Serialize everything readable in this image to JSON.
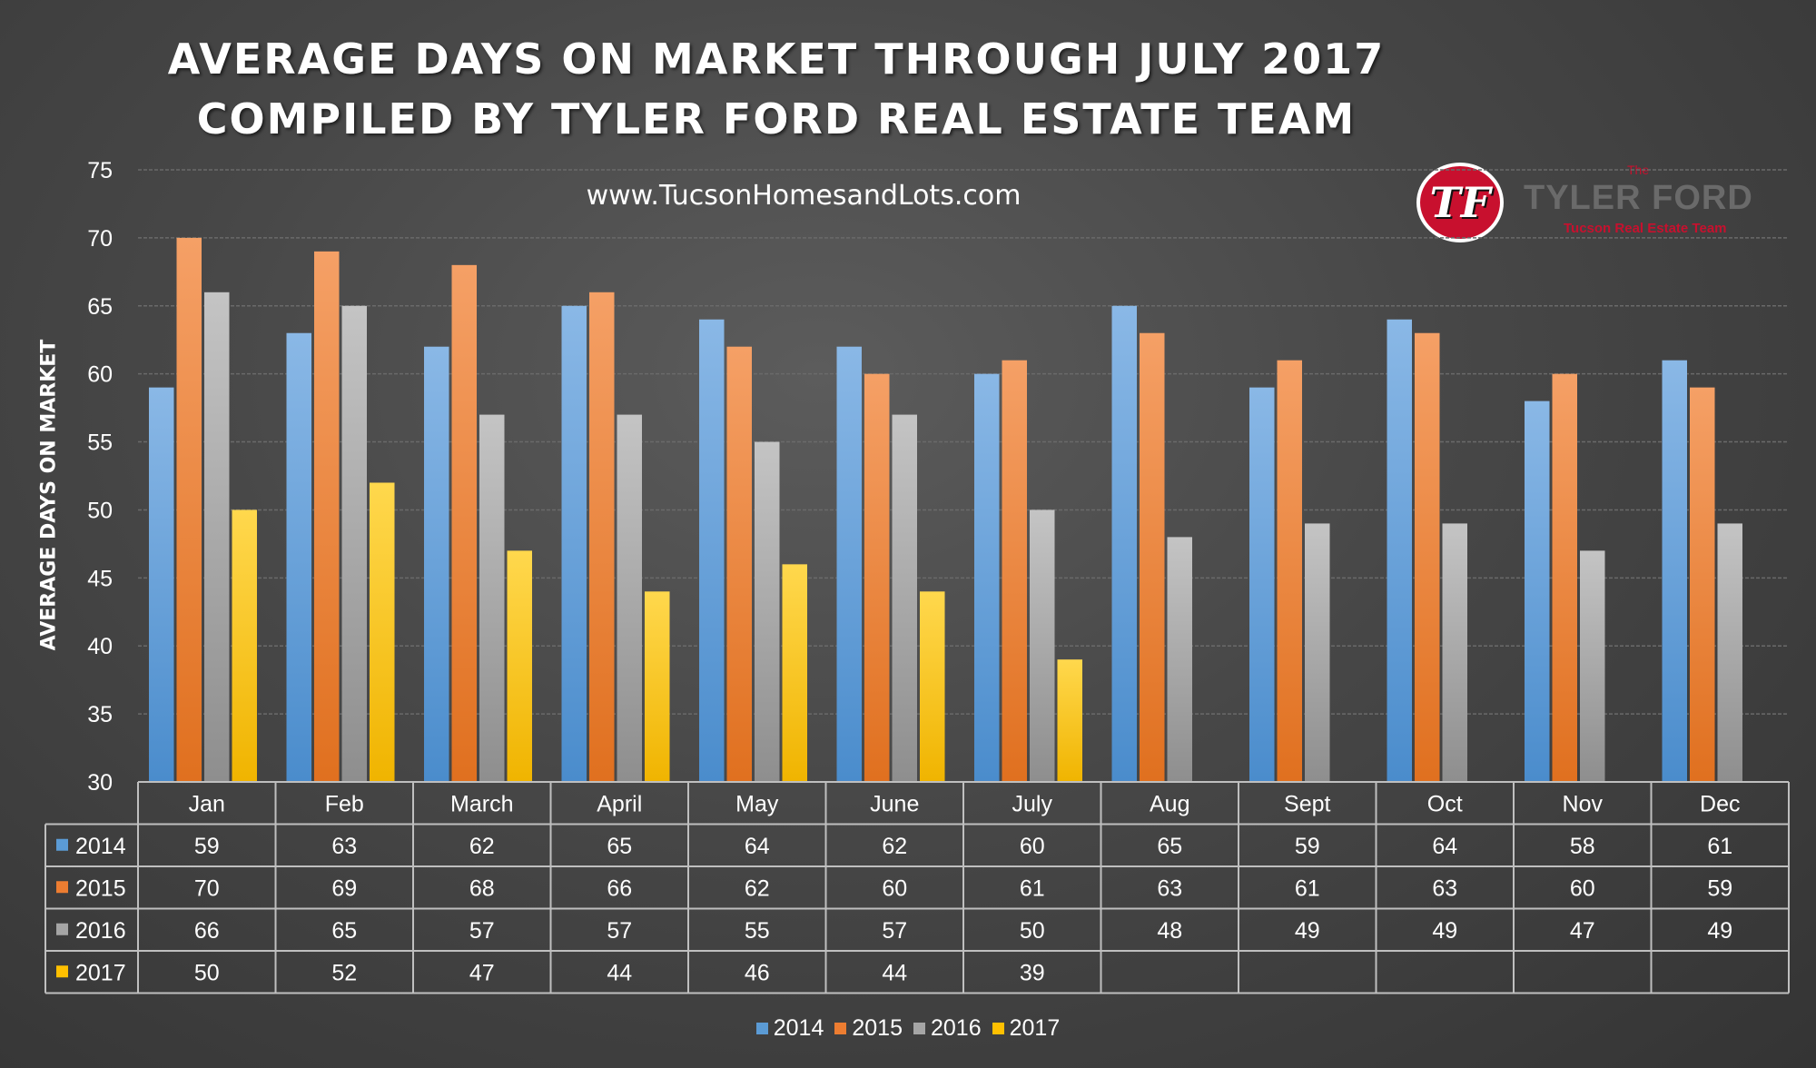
{
  "title": {
    "line1": "AVERAGE DAYS ON MARKET THROUGH JULY 2017",
    "line2": "COMPILED BY TYLER FORD REAL ESTATE TEAM"
  },
  "website": "www.TucsonHomesandLots.com",
  "logo": {
    "monogram": "TF",
    "the": "The",
    "name": "TYLER FORD",
    "subtitle": "Tucson Real Estate Team"
  },
  "colors": {
    "2014": "#5b9bd5",
    "2015": "#ed7d31",
    "2016": "#a5a5a5",
    "2017": "#ffc000",
    "grid": "#6a6a6a",
    "table_border": "#bfbfbf"
  },
  "chart_data": {
    "type": "bar",
    "title": "AVERAGE DAYS ON MARKET THROUGH JULY 2017",
    "subtitle": "COMPILED BY TYLER FORD REAL ESTATE TEAM",
    "xlabel": "",
    "ylabel": "AVERAGE DAYS ON MARKET",
    "ylim": [
      30,
      75
    ],
    "yticks": [
      30,
      35,
      40,
      45,
      50,
      55,
      60,
      65,
      70,
      75
    ],
    "grid": true,
    "legend_position": "bottom",
    "data_table": true,
    "categories": [
      "Jan",
      "Feb",
      "March",
      "April",
      "May",
      "June",
      "July",
      "Aug",
      "Sept",
      "Oct",
      "Nov",
      "Dec"
    ],
    "series": [
      {
        "name": "2014",
        "values": [
          59,
          63,
          62,
          65,
          64,
          62,
          60,
          65,
          59,
          64,
          58,
          61
        ]
      },
      {
        "name": "2015",
        "values": [
          70,
          69,
          68,
          66,
          62,
          60,
          61,
          63,
          61,
          63,
          60,
          59
        ]
      },
      {
        "name": "2016",
        "values": [
          66,
          65,
          57,
          57,
          55,
          57,
          50,
          48,
          49,
          49,
          47,
          49
        ]
      },
      {
        "name": "2017",
        "values": [
          50,
          52,
          47,
          44,
          46,
          44,
          39,
          null,
          null,
          null,
          null,
          null
        ]
      }
    ]
  }
}
